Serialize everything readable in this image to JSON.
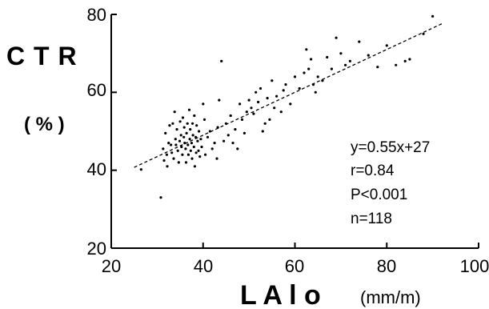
{
  "chart_data": {
    "type": "scatter",
    "title": "",
    "ylabel": "C T R",
    "ylabel_unit": "( % )",
    "xlabel": "L A l o",
    "xlabel_unit": "(mm/m)",
    "xlim": [
      20,
      100
    ],
    "ylim": [
      20,
      80
    ],
    "xticks": [
      "20",
      "40",
      "60",
      "80",
      "100"
    ],
    "yticks": [
      "20",
      "40",
      "60",
      "80"
    ],
    "grid": false,
    "regression": {
      "slope": 0.55,
      "intercept": 27,
      "x_range": [
        25,
        92
      ],
      "style": "dashed"
    },
    "annotations": [
      "y=0.55x+27",
      "r=0.84",
      "P<0.001",
      "n=118"
    ],
    "points": [
      [
        26.5,
        40.2
      ],
      [
        30.8,
        33
      ],
      [
        31.3,
        45.5
      ],
      [
        31.5,
        42.5
      ],
      [
        31.8,
        49.5
      ],
      [
        32.1,
        44
      ],
      [
        32.2,
        41
      ],
      [
        32.5,
        47
      ],
      [
        32.7,
        51.5
      ],
      [
        33,
        46.5
      ],
      [
        33.2,
        44.5
      ],
      [
        33.4,
        52
      ],
      [
        33.6,
        43
      ],
      [
        33.8,
        55
      ],
      [
        34,
        48
      ],
      [
        34.1,
        46.5
      ],
      [
        34.3,
        50.5
      ],
      [
        34.5,
        45
      ],
      [
        34.7,
        42
      ],
      [
        34.9,
        47.5
      ],
      [
        35,
        52.5
      ],
      [
        35.2,
        49
      ],
      [
        35.3,
        46
      ],
      [
        35.5,
        44
      ],
      [
        35.6,
        53.5
      ],
      [
        35.8,
        48.5
      ],
      [
        35.9,
        51
      ],
      [
        36,
        47
      ],
      [
        36.2,
        45.5
      ],
      [
        36.3,
        42
      ],
      [
        36.4,
        49.5
      ],
      [
        36.6,
        52
      ],
      [
        36.7,
        46.5
      ],
      [
        36.8,
        44
      ],
      [
        37,
        55.5
      ],
      [
        37.1,
        48
      ],
      [
        37.2,
        50.5
      ],
      [
        37.3,
        45
      ],
      [
        37.5,
        47
      ],
      [
        37.6,
        43
      ],
      [
        37.7,
        52
      ],
      [
        37.8,
        49
      ],
      [
        38,
        46
      ],
      [
        38.1,
        54
      ],
      [
        38.2,
        41
      ],
      [
        38.4,
        48.5
      ],
      [
        38.5,
        44.5
      ],
      [
        38.6,
        51.5
      ],
      [
        38.8,
        47.5
      ],
      [
        39,
        45
      ],
      [
        39.1,
        50
      ],
      [
        39.3,
        43.5
      ],
      [
        39.5,
        48
      ],
      [
        39.7,
        46
      ],
      [
        40,
        57
      ],
      [
        40.3,
        53
      ],
      [
        40.5,
        44
      ],
      [
        41,
        48.5
      ],
      [
        41.5,
        50
      ],
      [
        42,
        45.5
      ],
      [
        42.5,
        47
      ],
      [
        43,
        43
      ],
      [
        43.2,
        51
      ],
      [
        43.5,
        58
      ],
      [
        44,
        68
      ],
      [
        44.5,
        47.5
      ],
      [
        45,
        52
      ],
      [
        45.5,
        49
      ],
      [
        46,
        54
      ],
      [
        46.5,
        47
      ],
      [
        47,
        50.5
      ],
      [
        47.5,
        45.5
      ],
      [
        48,
        57
      ],
      [
        48.5,
        53
      ],
      [
        49,
        49.5
      ],
      [
        49.5,
        55
      ],
      [
        50,
        58
      ],
      [
        50.5,
        56
      ],
      [
        51,
        54.5
      ],
      [
        51.5,
        60
      ],
      [
        52,
        57.5
      ],
      [
        52.5,
        61
      ],
      [
        53,
        50
      ],
      [
        53.5,
        52
      ],
      [
        54,
        58.5
      ],
      [
        54.5,
        53
      ],
      [
        55,
        63
      ],
      [
        55.5,
        56
      ],
      [
        56,
        59
      ],
      [
        57,
        55
      ],
      [
        57.5,
        60.5
      ],
      [
        58,
        62
      ],
      [
        59,
        57
      ],
      [
        60,
        64
      ],
      [
        61,
        61
      ],
      [
        62,
        65
      ],
      [
        62.5,
        71
      ],
      [
        63,
        66
      ],
      [
        63.5,
        68.5
      ],
      [
        64,
        62
      ],
      [
        64.5,
        60
      ],
      [
        65,
        64
      ],
      [
        66,
        63
      ],
      [
        67,
        69
      ],
      [
        68,
        66
      ],
      [
        69,
        74
      ],
      [
        70,
        70
      ],
      [
        71,
        67
      ],
      [
        72,
        68
      ],
      [
        74,
        73
      ],
      [
        76,
        69.5
      ],
      [
        78,
        66.5
      ],
      [
        80,
        72
      ],
      [
        82,
        67
      ],
      [
        84,
        68
      ],
      [
        85,
        68.5
      ],
      [
        88,
        75
      ],
      [
        90,
        79.5
      ]
    ]
  }
}
